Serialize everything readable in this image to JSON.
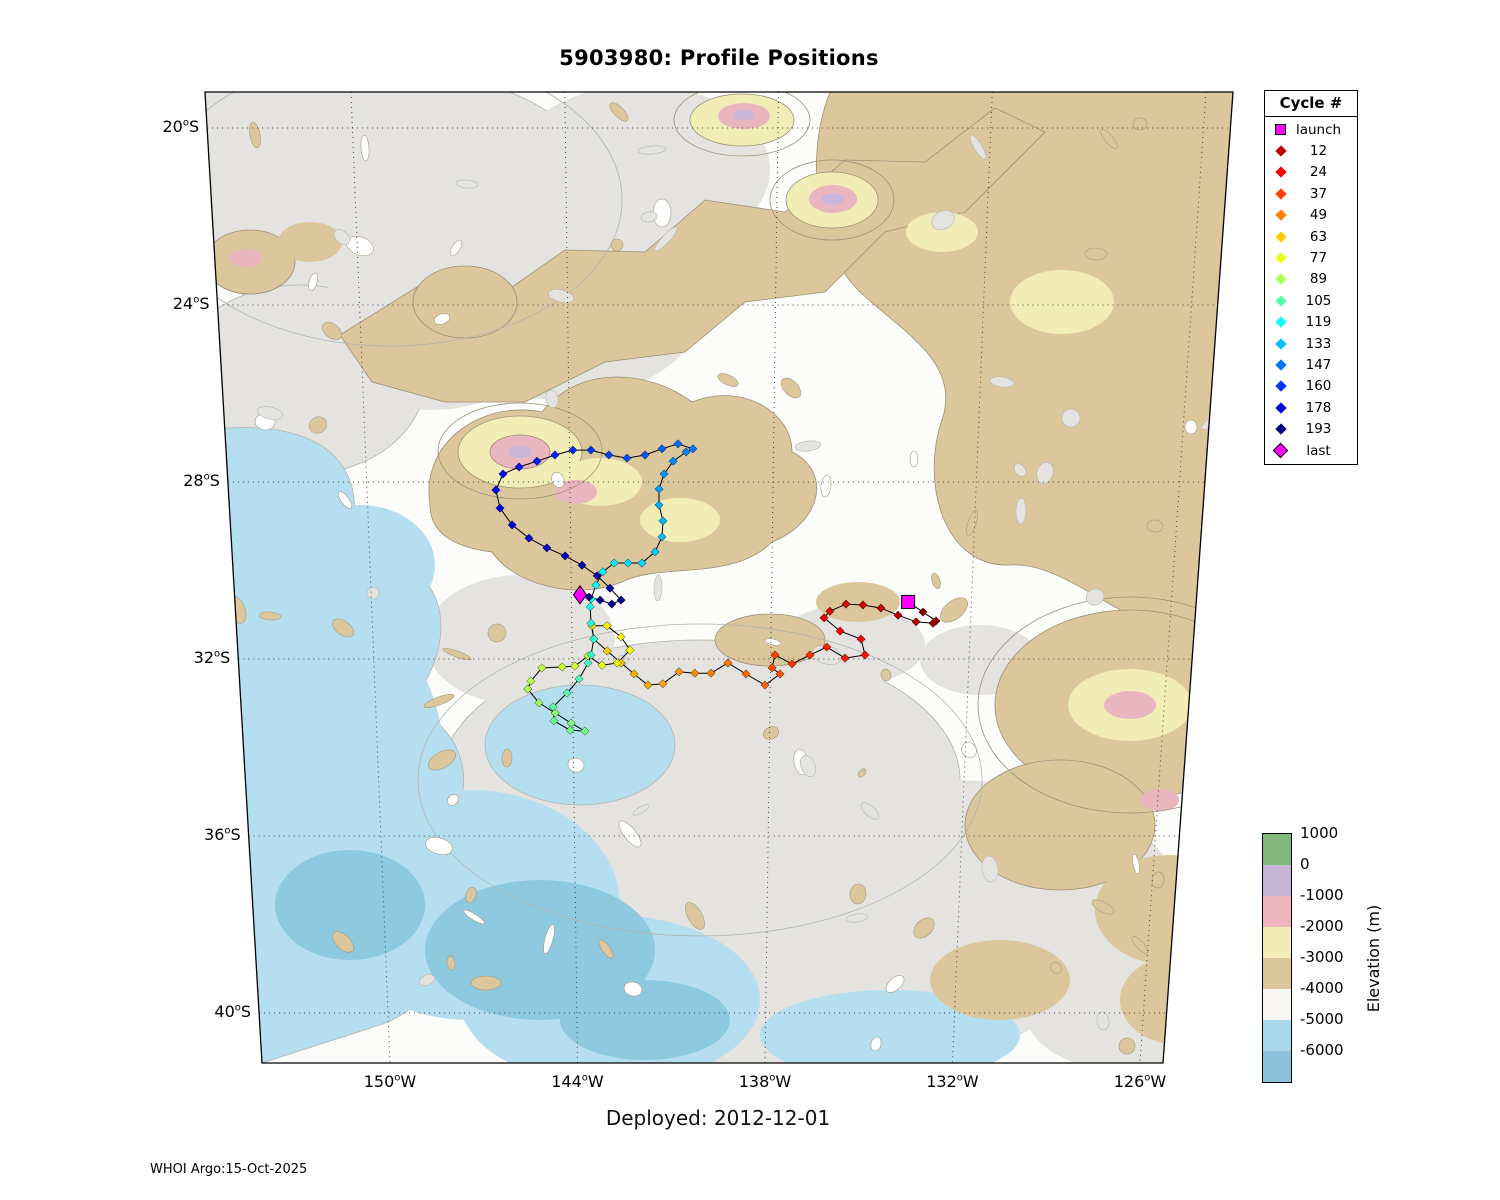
{
  "title": "5903980: Profile Positions",
  "deployed_caption": "Deployed: 2012-12-01",
  "credit": "WHOI Argo:15-Oct-2025",
  "map": {
    "lat_ticks": [
      {
        "deg": "20",
        "hemi": "S",
        "value": -20
      },
      {
        "deg": "24",
        "hemi": "S",
        "value": -24
      },
      {
        "deg": "28",
        "hemi": "S",
        "value": -28
      },
      {
        "deg": "32",
        "hemi": "S",
        "value": -32
      },
      {
        "deg": "36",
        "hemi": "S",
        "value": -36
      },
      {
        "deg": "40",
        "hemi": "S",
        "value": -40
      }
    ],
    "lon_ticks": [
      {
        "deg": "150",
        "hemi": "W",
        "value": -150
      },
      {
        "deg": "144",
        "hemi": "W",
        "value": -144
      },
      {
        "deg": "138",
        "hemi": "W",
        "value": -138
      },
      {
        "deg": "132",
        "hemi": "W",
        "value": -132
      },
      {
        "deg": "126",
        "hemi": "W",
        "value": -126
      }
    ],
    "palette": {
      "base": "#fcfcfa",
      "gray": "#e4e3e0",
      "blue": "#b5dff0",
      "blue2": "#8ecadf",
      "tan": "#dcc79c",
      "yellow": "#f2ecb6",
      "pink": "#e9b6c0",
      "purple": "#c9b6d8",
      "tedge": "#9b9176",
      "gedge": "#b3b3ae",
      "grid": "#444444"
    }
  },
  "legend": {
    "title": "Cycle #",
    "launch_label": "launch",
    "last_label": "last",
    "marker_color": "#ff00ff",
    "cycle_entries": [
      12,
      24,
      37,
      49,
      63,
      77,
      89,
      105,
      119,
      133,
      147,
      160,
      178,
      193
    ],
    "max_cycle": 193
  },
  "colorbar": {
    "label": "Elevation (m)",
    "ticks": [
      "1000",
      "0",
      "-1000",
      "-2000",
      "-3000",
      "-4000",
      "-5000",
      "-6000"
    ],
    "segment_colors": [
      "#83b87d",
      "#c7b5d8",
      "#eeb5bf",
      "#f3edb5",
      "#dcc79c",
      "#f7f6f2",
      "#a9d8ea",
      "#8cc3da"
    ]
  },
  "chart_data": {
    "type": "scatter",
    "title": "5903980: Profile Positions",
    "lat_ticks_deg_S": [
      20,
      24,
      28,
      32,
      36,
      40
    ],
    "lon_ticks_deg_W": [
      150,
      144,
      138,
      132,
      126
    ],
    "xlim": [
      -154.1,
      -125.2
    ],
    "ylim": [
      -42.3,
      -19.2
    ],
    "colormap": "jet reversed (low cycle = dark red, high cycle = dark blue)",
    "launch": {
      "lon": -133.9,
      "lat": -30.71
    },
    "last": {
      "lon": -143.74,
      "lat": -30.55,
      "cycle": 193
    },
    "track": [
      [
        1,
        -133.9,
        -30.71
      ],
      [
        3,
        -133.44,
        -30.94
      ],
      [
        5,
        -133.04,
        -31.14
      ],
      [
        7,
        -133.13,
        -31.19
      ],
      [
        9,
        -133.64,
        -31.16
      ],
      [
        11,
        -134.19,
        -31.01
      ],
      [
        13,
        -134.71,
        -30.85
      ],
      [
        15,
        -135.25,
        -30.78
      ],
      [
        17,
        -135.76,
        -30.76
      ],
      [
        19,
        -136.24,
        -30.92
      ],
      [
        21,
        -136.41,
        -31.07
      ],
      [
        23,
        -135.92,
        -31.37
      ],
      [
        25,
        -135.28,
        -31.55
      ],
      [
        27,
        -135.15,
        -31.91
      ],
      [
        29,
        -135.75,
        -31.98
      ],
      [
        31,
        -136.31,
        -31.73
      ],
      [
        33,
        -136.81,
        -31.91
      ],
      [
        35,
        -137.35,
        -32.11
      ],
      [
        37,
        -137.87,
        -31.91
      ],
      [
        39,
        -137.95,
        -32.2
      ],
      [
        41,
        -137.71,
        -32.34
      ],
      [
        43,
        -138.16,
        -32.59
      ],
      [
        45,
        -138.74,
        -32.34
      ],
      [
        47,
        -139.29,
        -32.09
      ],
      [
        49,
        -139.8,
        -32.32
      ],
      [
        51,
        -140.29,
        -32.32
      ],
      [
        53,
        -140.77,
        -32.29
      ],
      [
        55,
        -141.26,
        -32.56
      ],
      [
        57,
        -141.71,
        -32.59
      ],
      [
        59,
        -142.13,
        -32.34
      ],
      [
        61,
        -142.52,
        -32.09
      ],
      [
        63,
        -142.94,
        -31.82
      ],
      [
        65,
        -143.34,
        -31.55
      ],
      [
        67,
        -143.39,
        -31.25
      ],
      [
        69,
        -142.94,
        -31.25
      ],
      [
        71,
        -142.52,
        -31.5
      ],
      [
        73,
        -142.25,
        -31.8
      ],
      [
        75,
        -142.64,
        -32.09
      ],
      [
        77,
        -143.1,
        -32.14
      ],
      [
        79,
        -143.52,
        -31.93
      ],
      [
        81,
        -143.92,
        -32.16
      ],
      [
        83,
        -144.31,
        -32.18
      ],
      [
        85,
        -144.92,
        -32.2
      ],
      [
        87,
        -145.26,
        -32.5
      ],
      [
        89,
        -145.36,
        -32.68
      ],
      [
        91,
        -145.03,
        -32.99
      ],
      [
        93,
        -144.54,
        -33.22
      ],
      [
        95,
        -144.06,
        -33.45
      ],
      [
        97,
        -143.64,
        -33.63
      ],
      [
        99,
        -144.09,
        -33.61
      ],
      [
        101,
        -144.58,
        -33.4
      ],
      [
        103,
        -144.6,
        -33.08
      ],
      [
        105,
        -144.17,
        -32.77
      ],
      [
        107,
        -143.8,
        -32.45
      ],
      [
        109,
        -143.52,
        -32.09
      ],
      [
        111,
        -143.43,
        -31.91
      ],
      [
        113,
        -143.34,
        -31.55
      ],
      [
        115,
        -143.42,
        -31.19
      ],
      [
        117,
        -143.44,
        -30.82
      ],
      [
        119,
        -143.41,
        -30.64
      ],
      [
        121,
        -143.26,
        -30.33
      ],
      [
        123,
        -143.05,
        -30.03
      ],
      [
        125,
        -142.71,
        -29.83
      ],
      [
        127,
        -142.3,
        -29.83
      ],
      [
        129,
        -141.88,
        -29.83
      ],
      [
        131,
        -141.49,
        -29.58
      ],
      [
        133,
        -141.28,
        -29.24
      ],
      [
        135,
        -141.25,
        -28.88
      ],
      [
        137,
        -141.37,
        -28.52
      ],
      [
        139,
        -141.37,
        -28.16
      ],
      [
        141,
        -141.22,
        -27.82
      ],
      [
        143,
        -140.95,
        -27.53
      ],
      [
        145,
        -140.57,
        -27.32
      ],
      [
        147,
        -140.37,
        -27.25
      ],
      [
        149,
        -140.81,
        -27.14
      ],
      [
        151,
        -141.28,
        -27.25
      ],
      [
        153,
        -141.78,
        -27.39
      ],
      [
        155,
        -142.31,
        -27.46
      ],
      [
        157,
        -142.84,
        -27.39
      ],
      [
        159,
        -143.37,
        -27.28
      ],
      [
        161,
        -143.9,
        -27.28
      ],
      [
        163,
        -144.43,
        -27.39
      ],
      [
        165,
        -144.96,
        -27.53
      ],
      [
        167,
        -145.49,
        -27.66
      ],
      [
        169,
        -145.97,
        -27.82
      ],
      [
        171,
        -146.19,
        -28.18
      ],
      [
        173,
        -146.08,
        -28.59
      ],
      [
        175,
        -145.73,
        -28.97
      ],
      [
        177,
        -145.24,
        -29.27
      ],
      [
        179,
        -144.71,
        -29.49
      ],
      [
        181,
        -144.17,
        -29.67
      ],
      [
        183,
        -143.67,
        -29.88
      ],
      [
        185,
        -143.22,
        -30.12
      ],
      [
        187,
        -142.84,
        -30.4
      ],
      [
        189,
        -142.51,
        -30.67
      ],
      [
        190,
        -142.79,
        -30.76
      ],
      [
        191,
        -143.14,
        -30.67
      ],
      [
        192,
        -143.47,
        -30.6
      ],
      [
        193,
        -143.74,
        -30.55
      ]
    ]
  }
}
